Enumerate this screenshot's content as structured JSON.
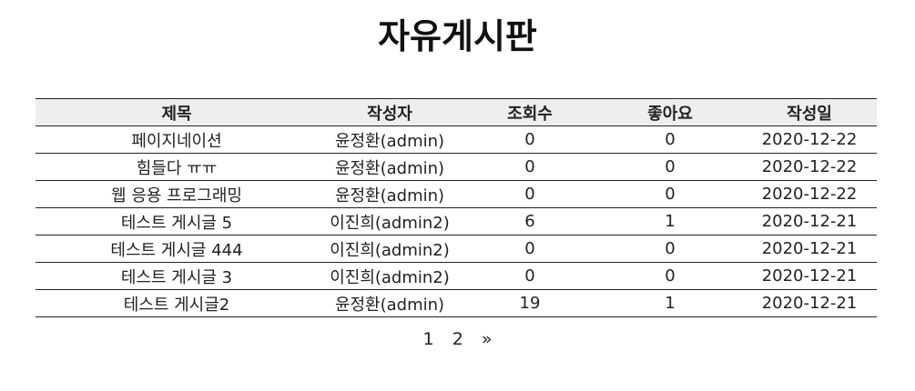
{
  "page_title": "자유게시판",
  "table": {
    "headers": [
      "제목",
      "작성자",
      "조회수",
      "좋아요",
      "작성일"
    ],
    "rows": [
      [
        "페이지네이션",
        "윤정환(admin)",
        "0",
        "0",
        "2020-12-22"
      ],
      [
        "힘들다 ㅠㅠ",
        "윤정환(admin)",
        "0",
        "0",
        "2020-12-22"
      ],
      [
        "웹 응용 프로그래밍",
        "윤정환(admin)",
        "0",
        "0",
        "2020-12-22"
      ],
      [
        "테스트 게시글 5",
        "이진희(admin2)",
        "6",
        "1",
        "2020-12-21"
      ],
      [
        "테스트 게시글 444",
        "이진희(admin2)",
        "0",
        "0",
        "2020-12-21"
      ],
      [
        "테스트 게시글 3",
        "이진희(admin2)",
        "0",
        "0",
        "2020-12-21"
      ],
      [
        "테스트 게시글2",
        "윤정환(admin)",
        "19",
        "1",
        "2020-12-21"
      ]
    ]
  },
  "pagination": {
    "pages": [
      "1",
      "2"
    ],
    "next": "»"
  }
}
